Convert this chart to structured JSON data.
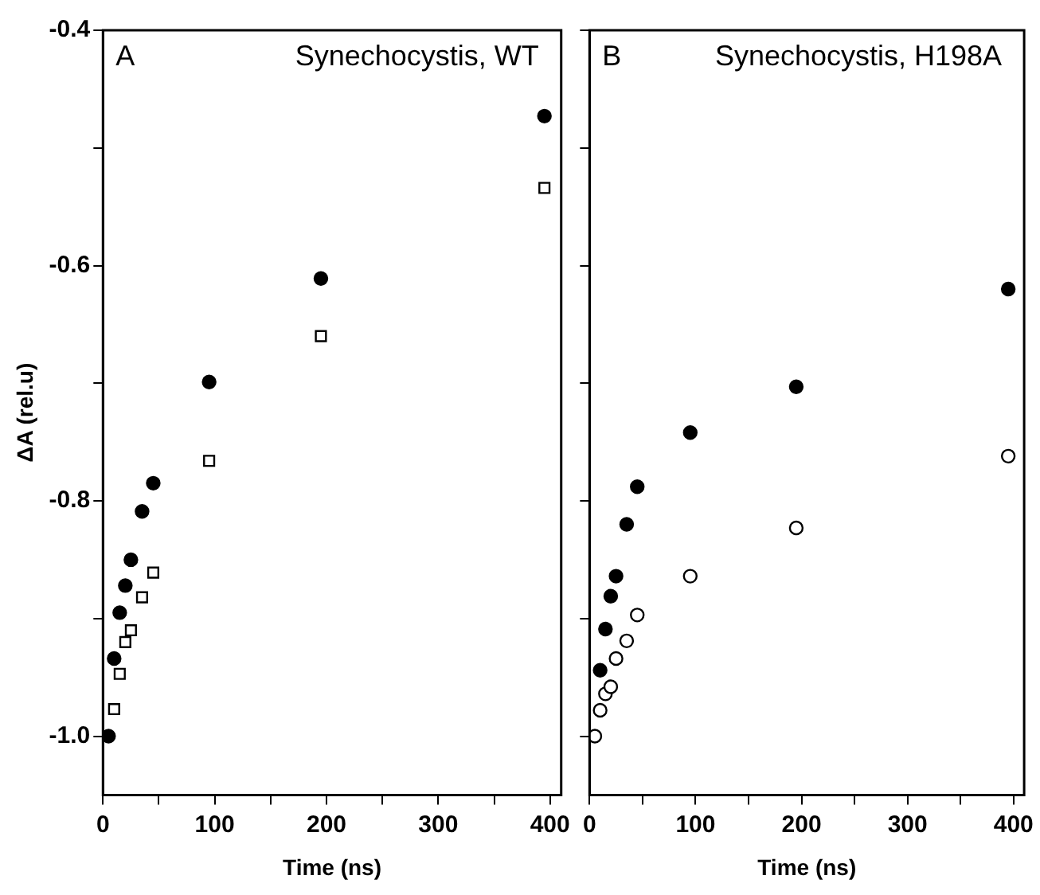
{
  "chart_data": [
    {
      "type": "scatter",
      "title": "Synechocystis, WT",
      "annotations": [
        "A"
      ],
      "xlabel": "Time (ns)",
      "ylabel": "ΔA (rel.u)",
      "xlim": [
        0,
        410
      ],
      "xticks": [
        0,
        {
          "value": 50,
          "label": null
        },
        100,
        {
          "value": 150,
          "label": null
        },
        200,
        {
          "value": 250,
          "label": null
        },
        300,
        {
          "value": 350,
          "label": null
        },
        400
      ],
      "ylim": [
        -1.05,
        -0.4
      ],
      "yticks": [
        {
          "value": -1.0,
          "label": "-1.0"
        },
        {
          "value": -0.9,
          "label": null
        },
        -0.8,
        {
          "value": -0.7,
          "label": null
        },
        -0.6,
        {
          "value": -0.5,
          "label": null
        },
        -0.4
      ],
      "grid": false,
      "legend": false,
      "series": [
        {
          "color": "#000000",
          "marker": "circle",
          "x": [
            5,
            10,
            15,
            20,
            25,
            35,
            45,
            95,
            195,
            395
          ],
          "values": [
            -1.0,
            -0.934,
            -0.895,
            -0.872,
            -0.85,
            -0.809,
            -0.785,
            -0.699,
            -0.611,
            -0.473
          ]
        },
        {
          "color": "#ffffff",
          "marker": "square",
          "x": [
            10,
            15,
            20,
            25,
            35,
            45,
            95,
            195,
            395
          ],
          "values": [
            -0.977,
            -0.947,
            -0.92,
            -0.91,
            -0.882,
            -0.861,
            -0.766,
            -0.66,
            -0.534
          ]
        }
      ]
    },
    {
      "type": "scatter",
      "title": "Synechocystis, H198A",
      "annotations": [
        "B"
      ],
      "xlabel": "Time (ns)",
      "xlim": [
        0,
        410
      ],
      "xticks": [
        {
          "value": 0,
          "label": "0"
        },
        {
          "value": 50,
          "label": null
        },
        100,
        {
          "value": 150,
          "label": null
        },
        200,
        {
          "value": 250,
          "label": null
        },
        300,
        {
          "value": 350,
          "label": null
        },
        400
      ],
      "ylim": [
        -1.05,
        -0.4
      ],
      "yticks": [
        -1.0,
        -0.9,
        -0.8,
        -0.7,
        -0.6,
        -0.5,
        -0.4
      ],
      "tick_labels": "x",
      "grid": false,
      "legend": false,
      "series": [
        {
          "color": "#000000",
          "marker": "circle",
          "x": [
            10,
            15,
            20,
            25,
            35,
            45,
            95,
            195,
            395
          ],
          "values": [
            -0.944,
            -0.909,
            -0.881,
            -0.864,
            -0.82,
            -0.788,
            -0.742,
            -0.703,
            -0.62
          ]
        },
        {
          "color": "#ffffff",
          "marker": "circle",
          "x": [
            5,
            10,
            15,
            20,
            25,
            35,
            45,
            95,
            195,
            395
          ],
          "values": [
            -1.0,
            -0.978,
            -0.964,
            -0.958,
            -0.934,
            -0.919,
            -0.897,
            -0.864,
            -0.823,
            -0.762
          ]
        }
      ]
    }
  ]
}
